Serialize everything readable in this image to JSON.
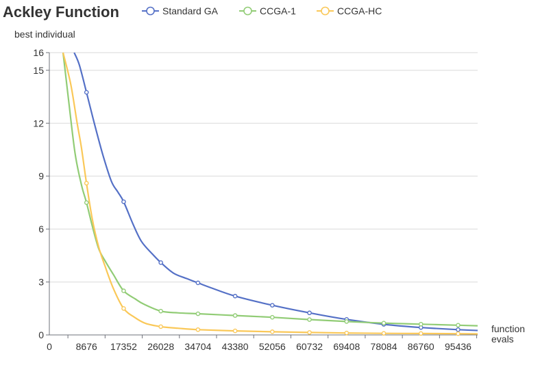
{
  "chart_data": {
    "type": "line",
    "title": "Ackley Function",
    "ylabel": "best individual",
    "xlabel_line1": "function",
    "xlabel_line2": "evals",
    "xlim": [
      0,
      100000
    ],
    "ylim": [
      0,
      16
    ],
    "x_ticks": [
      0,
      8676,
      17352,
      26028,
      34704,
      43380,
      52056,
      60732,
      69408,
      78084,
      86760,
      95436
    ],
    "y_ticks": [
      0,
      3,
      6,
      9,
      12,
      15,
      16
    ],
    "grid": true,
    "legend_position": "top",
    "series": [
      {
        "name": "Standard GA",
        "color": "#5470c6",
        "x": [
          5800,
          7000,
          8676,
          10500,
          12500,
          14500,
          16000,
          17352,
          19500,
          21500,
          24000,
          26028,
          29000,
          32000,
          34704,
          38000,
          43380,
          52056,
          60732,
          69408,
          78084,
          86760,
          95436,
          100000
        ],
        "y": [
          16.0,
          15.3,
          13.75,
          12.0,
          10.2,
          8.7,
          8.1,
          7.55,
          6.3,
          5.3,
          4.6,
          4.1,
          3.5,
          3.2,
          2.95,
          2.65,
          2.2,
          1.68,
          1.25,
          0.88,
          0.6,
          0.42,
          0.3,
          0.25
        ],
        "markers": [
          8676,
          17352,
          26028,
          34704,
          43380,
          52056,
          60732,
          69408,
          78084,
          86760,
          95436
        ]
      },
      {
        "name": "CCGA-1",
        "color": "#91cc75",
        "x": [
          3200,
          4500,
          6000,
          7500,
          8676,
          10000,
          11500,
          13000,
          15000,
          17352,
          20000,
          22000,
          26028,
          30000,
          34704,
          43380,
          52056,
          60732,
          69408,
          78084,
          86760,
          95436,
          100000
        ],
        "y": [
          16.0,
          13.3,
          10.3,
          8.5,
          7.5,
          6.2,
          4.9,
          4.2,
          3.4,
          2.5,
          2.05,
          1.75,
          1.35,
          1.25,
          1.2,
          1.1,
          1.0,
          0.87,
          0.76,
          0.67,
          0.61,
          0.55,
          0.52
        ],
        "markers": [
          8676,
          17352,
          26028,
          34704,
          43380,
          52056,
          60732,
          69408,
          78084,
          86760,
          95436
        ]
      },
      {
        "name": "CCGA-HC",
        "color": "#fac858",
        "x": [
          3200,
          5000,
          6500,
          7500,
          8676,
          10000,
          11500,
          13000,
          15000,
          17352,
          20000,
          22500,
          26028,
          30000,
          34704,
          43380,
          52056,
          60732,
          69408,
          78084,
          86760,
          95436,
          100000
        ],
        "y": [
          16.0,
          14.2,
          12.0,
          10.6,
          8.6,
          6.6,
          5.0,
          3.9,
          2.6,
          1.5,
          0.98,
          0.65,
          0.47,
          0.38,
          0.3,
          0.23,
          0.18,
          0.14,
          0.11,
          0.09,
          0.08,
          0.07,
          0.06
        ],
        "markers": [
          8676,
          17352,
          26028,
          34704,
          43380,
          52056,
          60732,
          69408,
          78084,
          86760,
          95436
        ]
      }
    ]
  }
}
